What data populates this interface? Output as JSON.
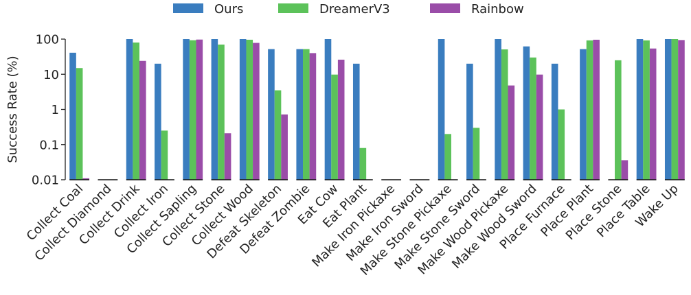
{
  "chart_data": {
    "type": "bar",
    "ylabel": "Success Rate (%)",
    "yscale": "log",
    "ylim": [
      0.01,
      100
    ],
    "yticks": [
      {
        "value": 0.01,
        "label": "0.01"
      },
      {
        "value": 0.1,
        "label": "0.1"
      },
      {
        "value": 1,
        "label": "1"
      },
      {
        "value": 10,
        "label": "10"
      },
      {
        "value": 100,
        "label": "100"
      }
    ],
    "legend_position": "top-center",
    "categories": [
      "Collect Coal",
      "Collect Diamond",
      "Collect Drink",
      "Collect Iron",
      "Collect Sapling",
      "Collect Stone",
      "Collect Wood",
      "Defeat Skeleton",
      "Defeat Zombie",
      "Eat Cow",
      "Eat Plant",
      "Make Iron Pickaxe",
      "Make Iron Sword",
      "Make Stone Pickaxe",
      "Make Stone Sword",
      "Make Wood Pickaxe",
      "Make Wood Sword",
      "Place Furnace",
      "Place Plant",
      "Place Stone",
      "Place Table",
      "Wake Up"
    ],
    "series": [
      {
        "name": "Ours",
        "color": "#3a7dbf",
        "values": [
          41,
          0.01,
          100,
          20,
          100,
          100,
          100,
          52,
          52,
          100,
          20,
          0.01,
          0.01,
          100,
          20,
          100,
          62,
          20,
          52,
          0.01,
          100,
          100
        ]
      },
      {
        "name": "DreamerV3",
        "color": "#5cc25a",
        "values": [
          15,
          0.01,
          80,
          0.25,
          93,
          70,
          96,
          3.5,
          52,
          9.8,
          0.08,
          0.01,
          0.01,
          0.2,
          0.3,
          51,
          30,
          1,
          92,
          25,
          92,
          100
        ]
      },
      {
        "name": "Rainbow",
        "color": "#9a4da8",
        "values": [
          0.011,
          0.01,
          24,
          0.01,
          97,
          0.21,
          78,
          0.72,
          40,
          26,
          0.01,
          0.01,
          0.01,
          0.01,
          0.01,
          4.8,
          9.8,
          0.01,
          96,
          0.036,
          54,
          94
        ]
      }
    ]
  }
}
